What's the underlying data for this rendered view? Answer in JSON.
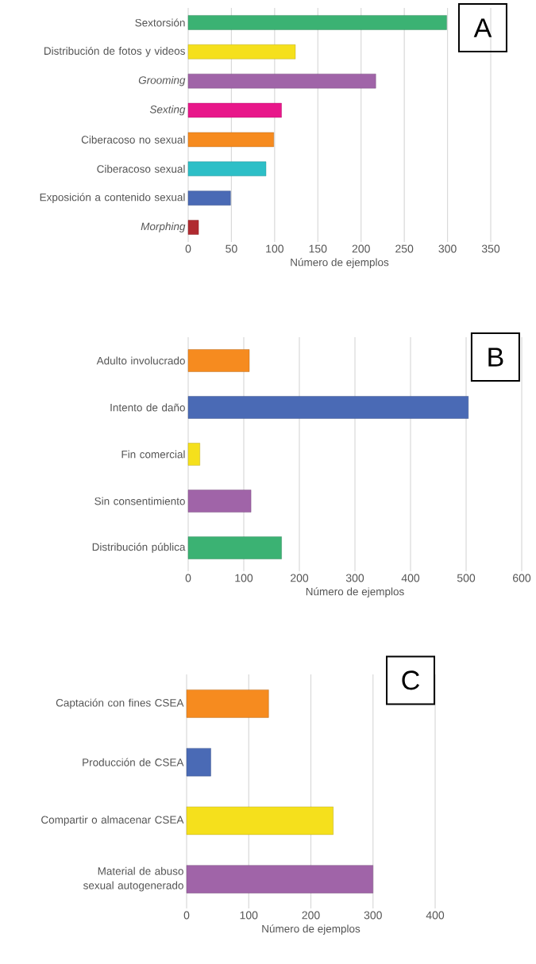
{
  "chart_data": [
    {
      "type": "bar",
      "orientation": "horizontal",
      "categories": [
        "Sextorsión",
        "Distribución de fotos y videos",
        "*Grooming*",
        "*Sexting*",
        "Ciberacoso no sexual",
        "Ciberacoso sexual",
        "Exposición a contenido sexual",
        "*Morphing*"
      ],
      "values": [
        299,
        124,
        217,
        108,
        99,
        90,
        49,
        12
      ],
      "colors": [
        "#3bb273",
        "#f5e01c",
        "#a064a8",
        "#e8178a",
        "#f68b1f",
        "#2dbfc7",
        "#4a6ab5",
        "#b02a30"
      ],
      "xlim": [
        0,
        350
      ],
      "xticks": [
        0,
        50,
        100,
        150,
        200,
        250,
        300,
        350
      ],
      "xlabel": "Número de ejemplos",
      "grid": "x",
      "annotations": [
        "A"
      ]
    },
    {
      "type": "bar",
      "orientation": "horizontal",
      "categories": [
        "Adulto involucrado",
        "Intento de daño",
        "Fin comercial",
        "Sin consentimiento",
        "Distribución pública"
      ],
      "values": [
        110,
        504,
        21,
        113,
        168
      ],
      "colors": [
        "#f68b1f",
        "#4a6ab5",
        "#f5e01c",
        "#a064a8",
        "#3bb273"
      ],
      "xlim": [
        0,
        600
      ],
      "xticks": [
        0,
        100,
        200,
        300,
        400,
        500,
        600
      ],
      "xlabel": "Número de ejemplos",
      "grid": "x",
      "annotations": [
        "B"
      ]
    },
    {
      "type": "bar",
      "orientation": "horizontal",
      "categories": [
        "Captación con fines CSEA",
        "Producción de CSEA",
        "Compartir o almacenar CSEA",
        "Material de abuso sexual autogenerado"
      ],
      "values": [
        132,
        39,
        236,
        300
      ],
      "colors": [
        "#f68b1f",
        "#4a6ab5",
        "#f5e01c",
        "#a064a8"
      ],
      "xlim": [
        0,
        400
      ],
      "xticks": [
        0,
        100,
        200,
        300,
        400
      ],
      "xlabel": "Número de ejemplos",
      "grid": "x",
      "annotations": [
        "C"
      ]
    }
  ]
}
